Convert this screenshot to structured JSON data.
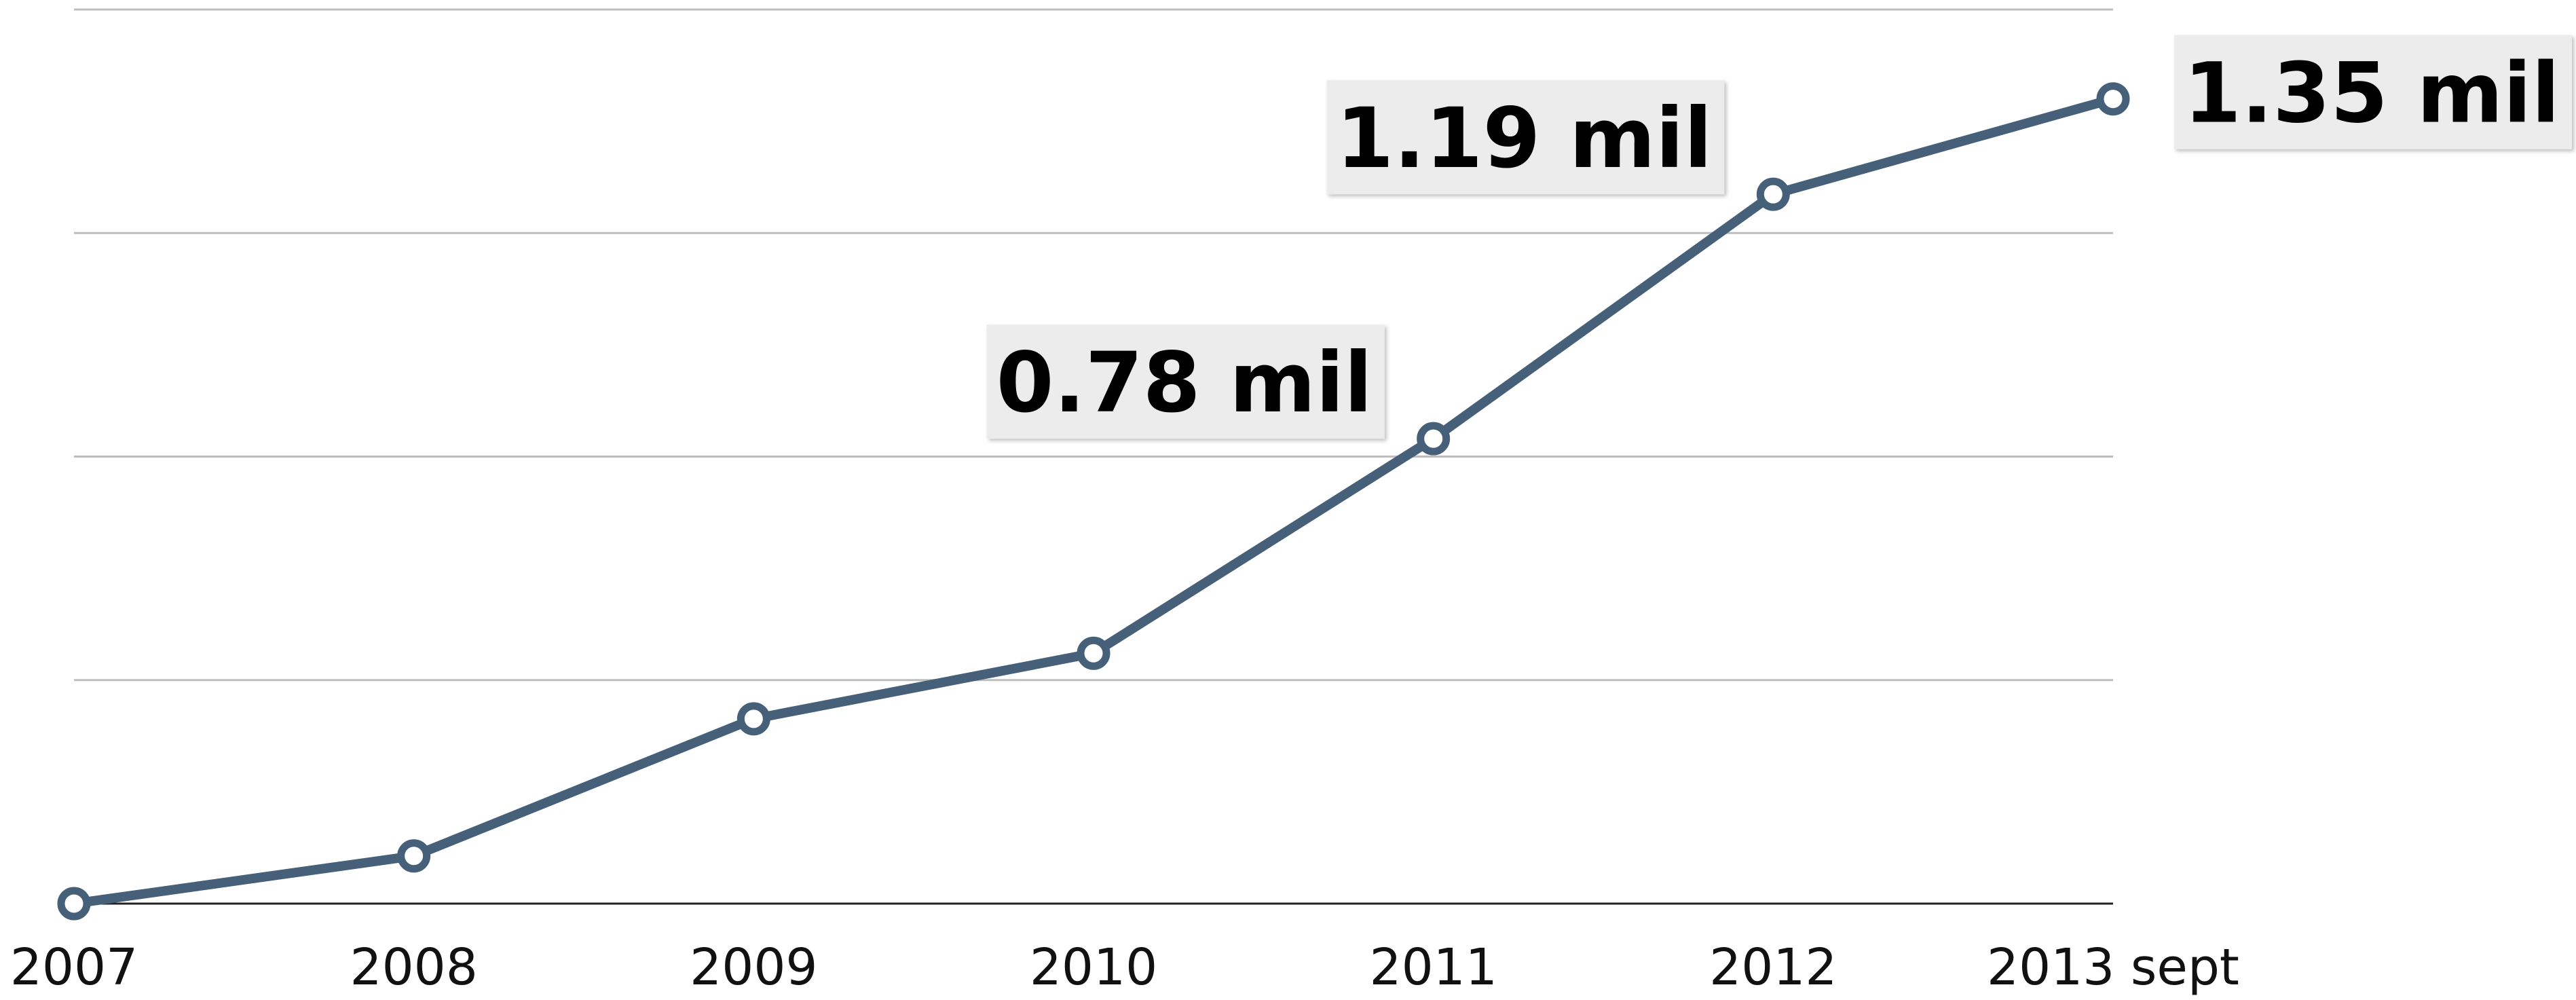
{
  "chart_data": {
    "type": "line",
    "categories": [
      "2007",
      "2008",
      "2009",
      "2010",
      "2011",
      "2012",
      "2013 sept"
    ],
    "series": [
      {
        "color": "#46607a",
        "values": [
          0,
          0.08,
          0.31,
          0.42,
          0.78,
          1.19,
          1.35
        ],
        "value_labels": [
          null,
          null,
          null,
          null,
          "0.78 mil",
          "1.19 mil",
          "1.35 mil"
        ]
      }
    ],
    "ylim": [
      0,
      1.5
    ],
    "yticks": [
      0,
      0.375,
      0.75,
      1.125,
      1.5
    ],
    "grid": true
  }
}
